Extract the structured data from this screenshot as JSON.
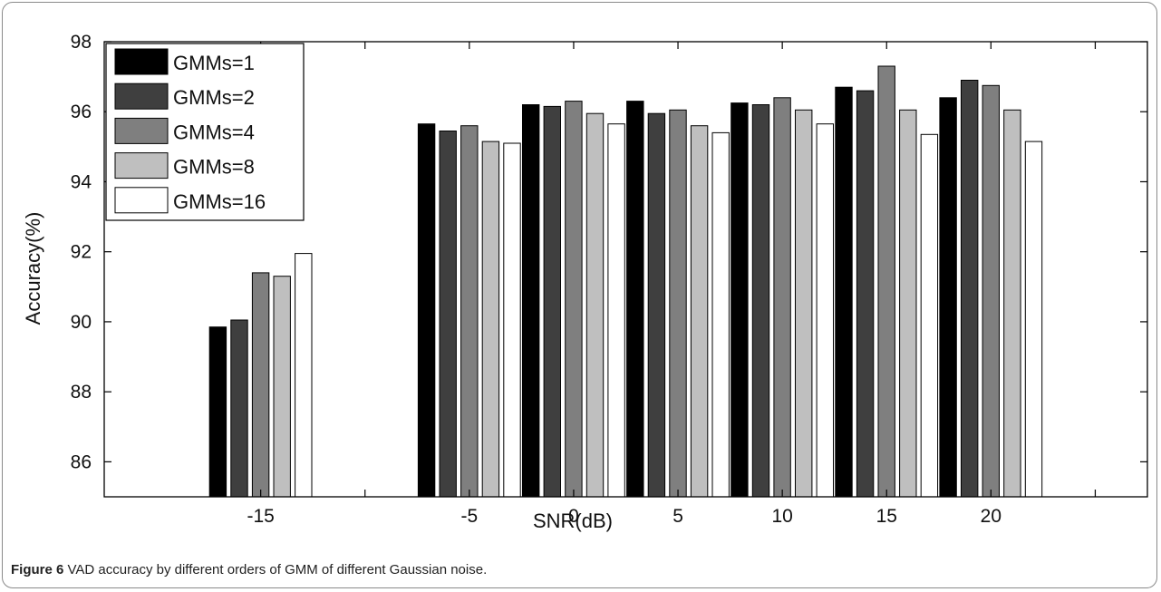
{
  "caption": {
    "label": "Figure 6",
    "text": "VAD accuracy by different orders of GMM of different Gaussian noise",
    "period": "."
  },
  "chart_data": {
    "type": "bar",
    "categories": [
      "-15",
      "-5",
      "0",
      "5",
      "10",
      "15",
      "20"
    ],
    "x": [
      -15,
      -5,
      0,
      5,
      10,
      15,
      20
    ],
    "xlim": [
      -22.5,
      27.5
    ],
    "xticks": [
      -15,
      -10,
      -5,
      0,
      5,
      10,
      15,
      20,
      25
    ],
    "xticklabels": [
      "-15",
      "",
      "-5",
      "0",
      "5",
      "10",
      "15",
      "20",
      ""
    ],
    "ylim": [
      85,
      98
    ],
    "yticks": [
      86,
      88,
      90,
      92,
      94,
      96,
      98
    ],
    "xlabel": "SNR(dB)",
    "ylabel": "Accuracy(%)",
    "legend_position": "top-left",
    "grid": false,
    "series": [
      {
        "name": "GMMs=1",
        "color": "#000000",
        "values": [
          89.85,
          95.65,
          96.2,
          96.3,
          96.25,
          96.7,
          96.4
        ]
      },
      {
        "name": "GMMs=2",
        "color": "#3f3f3f",
        "values": [
          90.05,
          95.45,
          96.15,
          95.95,
          96.2,
          96.6,
          96.9
        ]
      },
      {
        "name": "GMMs=4",
        "color": "#7f7f7f",
        "values": [
          91.4,
          95.6,
          96.3,
          96.05,
          96.4,
          97.3,
          96.75
        ]
      },
      {
        "name": "GMMs=8",
        "color": "#bfbfbf",
        "values": [
          91.3,
          95.15,
          95.95,
          95.6,
          96.05,
          96.05,
          96.05
        ]
      },
      {
        "name": "GMMs=16",
        "color": "#ffffff",
        "values": [
          91.95,
          95.1,
          95.65,
          95.4,
          95.65,
          95.35,
          95.15
        ]
      }
    ]
  }
}
